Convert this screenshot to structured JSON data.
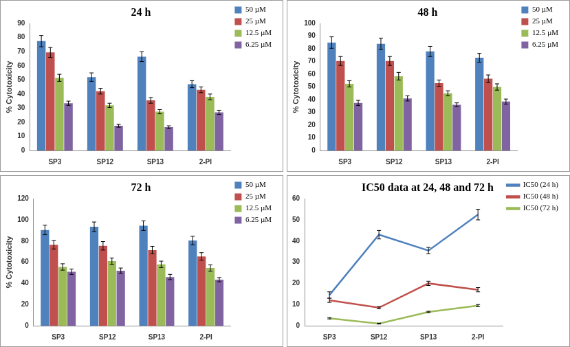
{
  "chart_data": [
    {
      "type": "bar",
      "title": "24 h",
      "y_label": "% Cytotoxicity",
      "categories": [
        "SP3",
        "SP12",
        "SP13",
        "2-PI"
      ],
      "series": [
        {
          "name": "50 µM",
          "color": "#4f81bd",
          "values": [
            77.5,
            52,
            66.5,
            47
          ],
          "errors": [
            4,
            3,
            3.5,
            2.5
          ]
        },
        {
          "name": "25 µM",
          "color": "#c0504d",
          "values": [
            69.5,
            42,
            35.5,
            43
          ],
          "errors": [
            3.5,
            2,
            2,
            2
          ]
        },
        {
          "name": "12.5 µM",
          "color": "#9bbb59",
          "values": [
            51.5,
            32,
            27.5,
            38
          ],
          "errors": [
            2.5,
            1.5,
            1.5,
            2
          ]
        },
        {
          "name": "6.25 µM",
          "color": "#8064a2",
          "values": [
            33.5,
            17.5,
            16.5,
            27
          ],
          "errors": [
            1.5,
            1,
            1,
            1.5
          ]
        }
      ],
      "ylim": [
        0,
        90
      ],
      "yticks": [
        0,
        10,
        20,
        30,
        40,
        50,
        60,
        70,
        80,
        90
      ],
      "legend": "right",
      "grid": false
    },
    {
      "type": "bar",
      "title": "48 h",
      "y_label": "% Cytotoxicity",
      "categories": [
        "SP3",
        "SP12",
        "SP13",
        "2-PI"
      ],
      "series": [
        {
          "name": "50 µM",
          "color": "#4f81bd",
          "values": [
            85,
            84,
            78,
            73
          ],
          "errors": [
            4.5,
            4.5,
            4,
            3.5
          ]
        },
        {
          "name": "25 µM",
          "color": "#c0504d",
          "values": [
            70.5,
            70.5,
            53,
            56.5
          ],
          "errors": [
            3.5,
            3.5,
            2.5,
            3
          ]
        },
        {
          "name": "12.5 µM",
          "color": "#9bbb59",
          "values": [
            52.5,
            58.5,
            45,
            50
          ],
          "errors": [
            2.5,
            3,
            2,
            2.5
          ]
        },
        {
          "name": "6.25 µM",
          "color": "#8064a2",
          "values": [
            37.5,
            41,
            36,
            38.5
          ],
          "errors": [
            2,
            2,
            1.5,
            2
          ]
        }
      ],
      "ylim": [
        0,
        100
      ],
      "yticks": [
        0,
        10,
        20,
        30,
        40,
        50,
        60,
        70,
        80,
        90,
        100
      ],
      "legend": "right",
      "grid": false
    },
    {
      "type": "bar",
      "title": "72 h",
      "y_label": "% Cytotoxicity",
      "categories": [
        "SP3",
        "SP12",
        "SP13",
        "2-PI"
      ],
      "series": [
        {
          "name": "50 µM",
          "color": "#4f81bd",
          "values": [
            90.5,
            93.5,
            94.5,
            80.5
          ],
          "errors": [
            4.5,
            4.5,
            4.5,
            4
          ]
        },
        {
          "name": "25 µM",
          "color": "#c0504d",
          "values": [
            76.5,
            75.5,
            71.5,
            65.5
          ],
          "errors": [
            4,
            4,
            3.5,
            3.5
          ]
        },
        {
          "name": "12.5 µM",
          "color": "#9bbb59",
          "values": [
            55.5,
            61,
            58,
            54.5
          ],
          "errors": [
            3,
            3,
            3,
            3
          ]
        },
        {
          "name": "6.25 µM",
          "color": "#8064a2",
          "values": [
            51,
            52,
            46,
            43.5
          ],
          "errors": [
            2.5,
            2.5,
            2.5,
            2
          ]
        }
      ],
      "ylim": [
        0,
        120
      ],
      "yticks": [
        0,
        20,
        40,
        60,
        80,
        100,
        120
      ],
      "legend": "right",
      "grid": false
    },
    {
      "type": "line",
      "title": "IC50 data at 24, 48 and 72 h",
      "categories": [
        "SP3",
        "SP12",
        "SP13",
        "2-PI"
      ],
      "series": [
        {
          "name": "IC50 (24 h)",
          "color": "#4f81bd",
          "values": [
            14.5,
            43,
            35.5,
            52.5
          ],
          "errors": [
            1.5,
            2,
            1.5,
            2.5
          ]
        },
        {
          "name": "IC50 (48 h)",
          "color": "#c0504d",
          "values": [
            12,
            8.5,
            20,
            17
          ],
          "errors": [
            1,
            0.5,
            1,
            1
          ]
        },
        {
          "name": "IC50 (72 h)",
          "color": "#9bbb59",
          "values": [
            3.5,
            1,
            6.5,
            9.5
          ],
          "errors": [
            0.3,
            0.2,
            0.3,
            0.5
          ]
        }
      ],
      "ylim": [
        0,
        60
      ],
      "yticks": [
        0,
        10,
        20,
        30,
        40,
        50,
        60
      ],
      "legend": "right",
      "grid": false
    }
  ]
}
